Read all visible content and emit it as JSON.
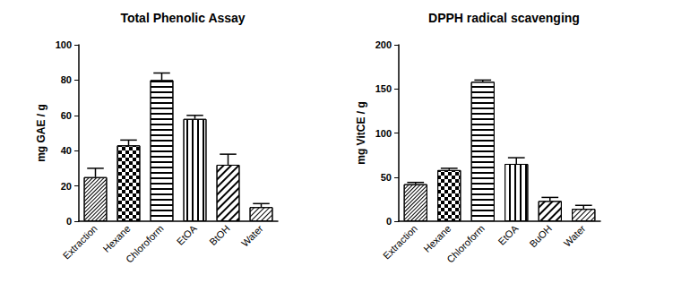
{
  "chart_data": [
    {
      "type": "bar",
      "title": "Total Phenolic Assay",
      "y_label": "mg GAE / g",
      "categories": [
        "Extraction",
        "Hexane",
        "Chloroform",
        "EtOA",
        "BtOH",
        "Water"
      ],
      "values": [
        25,
        43,
        80,
        58,
        32,
        8
      ],
      "errors": [
        5,
        3,
        4,
        2,
        6,
        2
      ],
      "color": "#000000",
      "ylim": [
        0,
        100
      ],
      "yticks": [
        0,
        20,
        40,
        60,
        80,
        100
      ],
      "grid": false
    },
    {
      "type": "bar",
      "title": "DPPH radical scavenging",
      "y_label": "mg VitCE / g",
      "categories": [
        "Extraction",
        "Hexane",
        "Chloroform",
        "EtOA",
        "BuOH",
        "Water"
      ],
      "values": [
        42,
        58,
        158,
        65,
        23,
        14
      ],
      "errors": [
        2,
        2,
        2,
        7,
        4,
        4
      ],
      "color": "#000000",
      "ylim": [
        0,
        200
      ],
      "yticks": [
        0,
        50,
        100,
        150,
        200
      ],
      "grid": false
    }
  ]
}
